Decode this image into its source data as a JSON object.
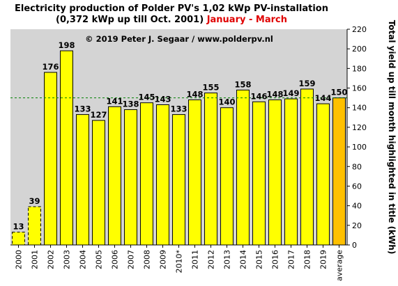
{
  "chart_data": {
    "type": "bar",
    "title_line1": "Electricity production  of Polder  PV's  1,02 kWp PV-installation",
    "title_line2_black": "(0,372 kWp up till Oct. 2001) ",
    "title_line2_red": "January - March",
    "copyright": "© 2019 Peter J. Segaar / www.polderpv.nl",
    "ylabel": "Total yield up till month highlighted in title (kWh)",
    "ylim": [
      0,
      220
    ],
    "yticks": [
      "0",
      "20",
      "40",
      "60",
      "80",
      "100",
      "120",
      "140",
      "160",
      "180",
      "200",
      "220"
    ],
    "ytick_values": [
      0,
      20,
      40,
      60,
      80,
      100,
      120,
      140,
      160,
      180,
      200,
      220
    ],
    "grid": "none",
    "reference_line": 150,
    "categories": [
      "2000",
      "2001",
      "2002",
      "2003",
      "2004",
      "2005",
      "2006",
      "2007",
      "2008",
      "2009",
      "2010*",
      "2011",
      "2012",
      "2013",
      "2014",
      "2015",
      "2016",
      "2017",
      "2018",
      "2019",
      "average"
    ],
    "values": [
      13,
      39,
      176,
      198,
      133,
      127,
      141,
      138,
      145,
      143,
      133,
      148,
      155,
      140,
      158,
      146,
      148,
      149,
      159,
      144,
      150
    ],
    "value_labels": [
      "13",
      "39",
      "176",
      "198",
      "133",
      "127",
      "141",
      "138",
      "145",
      "143",
      "133",
      "148",
      "155",
      "140",
      "158",
      "146",
      "148",
      "149",
      "159",
      "144",
      "150"
    ],
    "dashed_bars": [
      0,
      1
    ],
    "highlight_bar": 20,
    "colors": {
      "bar": "#ffff00",
      "highlight_bar": "#ffc000",
      "plot_background": "#d4d4d4",
      "reference_line": "#008000",
      "highlight_label": "#e00000",
      "title_red": "#e00000"
    }
  }
}
